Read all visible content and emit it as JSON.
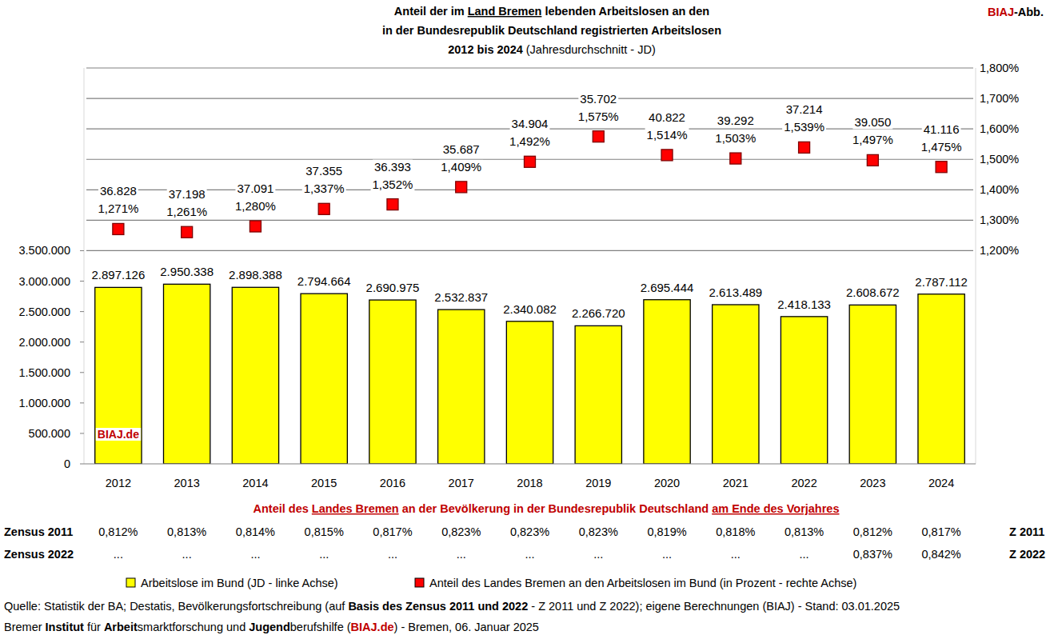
{
  "chart_data": {
    "type": "bar",
    "title": [
      [
        {
          "text": "Anteil der im "
        },
        {
          "text": "Land Bremen",
          "underline": true
        },
        {
          "text": " lebenden Arbeitslosen an den"
        }
      ],
      [
        {
          "text": "in der Bundesrepublik Deutschland registrierten Arbeitslosen"
        }
      ],
      [
        {
          "text": "2012 bis 2024"
        },
        {
          "text": "  (Jahresdurchschnitt - JD)",
          "bold": false
        }
      ]
    ],
    "badge": [
      {
        "text": "BIAJ",
        "color": "#c00000"
      },
      {
        "text": "-Abb."
      }
    ],
    "watermark": "BIAJ.de",
    "categories": [
      "2012",
      "2013",
      "2014",
      "2015",
      "2016",
      "2017",
      "2018",
      "2019",
      "2020",
      "2021",
      "2022",
      "2023",
      "2024"
    ],
    "series": [
      {
        "name": "Arbeitslose im Bund (JD - linke Achse)",
        "type": "bar",
        "color": "#ffff00",
        "values": [
          2897126,
          2950338,
          2898388,
          2794664,
          2690975,
          2532837,
          2340082,
          2266720,
          2695444,
          2613489,
          2418133,
          2608672,
          2787112
        ],
        "value_labels": [
          "2.897.126",
          "2.950.338",
          "2.898.388",
          "2.794.664",
          "2.690.975",
          "2.532.837",
          "2.340.082",
          "2.266.720",
          "2.695.444",
          "2.613.489",
          "2.418.133",
          "2.608.672",
          "2.787.112"
        ]
      },
      {
        "name": "Anteil des Landes Bremen an den Arbeitslosen im Bund (in Prozent - rechte Achse)",
        "type": "scatter",
        "marker": "square",
        "color": "#ff0000",
        "axis": "y2",
        "values": [
          1.271,
          1.261,
          1.28,
          1.337,
          1.352,
          1.409,
          1.492,
          1.575,
          1.514,
          1.503,
          1.539,
          1.497,
          1.475
        ],
        "value_labels": [
          "1,271%",
          "1,261%",
          "1,280%",
          "1,337%",
          "1,352%",
          "1,409%",
          "1,492%",
          "1,575%",
          "1,514%",
          "1,503%",
          "1,539%",
          "1,497%",
          "1,475%"
        ],
        "annotations": [
          "36.828",
          "37.198",
          "37.091",
          "37.355",
          "36.393",
          "35.687",
          "34.904",
          "35.702",
          "40.822",
          "39.292",
          "37.214",
          "39.050",
          "41.116"
        ]
      }
    ],
    "data_labels": true,
    "grid": true,
    "ylim": [
      0,
      6500000
    ],
    "yticks": [
      0,
      {
        "value": 500000,
        "label": "500.000"
      },
      {
        "value": 1000000,
        "label": "1.000.000"
      },
      {
        "value": 1500000,
        "label": "1.500.000"
      },
      {
        "value": 2000000,
        "label": "2.000.000"
      },
      {
        "value": 2500000,
        "label": "2.500.000"
      },
      {
        "value": 3000000,
        "label": "3.000.000"
      },
      {
        "value": 3500000,
        "label": "3.500.000"
      }
    ],
    "y2lim": [
      0.5,
      1.8
    ],
    "y2ticks": [
      {
        "value": 1.2,
        "label": "1,200%"
      },
      {
        "value": 1.3,
        "label": "1,300%"
      },
      {
        "value": 1.4,
        "label": "1,400%"
      },
      {
        "value": 1.5,
        "label": "1,500%"
      },
      {
        "value": 1.6,
        "label": "1,600%"
      },
      {
        "value": 1.7,
        "label": "1,700%"
      },
      {
        "value": 1.8,
        "label": "1,800%"
      }
    ],
    "table": {
      "title": [
        {
          "text": "Anteil des "
        },
        {
          "text": "Landes Bremen",
          "underline": true
        },
        {
          "text": " an der Bevölkerung in der Bundesrepublik Deutschland "
        },
        {
          "text": "am Ende des Vorjahres",
          "underline": true
        }
      ],
      "rows": [
        {
          "label": "Zensus 2011",
          "tag": "Z 2011",
          "cells": [
            "0,812%",
            "0,813%",
            "0,814%",
            "0,815%",
            "0,817%",
            "0,823%",
            "0,823%",
            "0,823%",
            "0,819%",
            "0,818%",
            "0,813%",
            "0,812%",
            "0,817%"
          ]
        },
        {
          "label": "Zensus 2022",
          "tag": "Z 2022",
          "cells": [
            "...",
            "...",
            "...",
            "...",
            "...",
            "...",
            "...",
            "...",
            "...",
            "...",
            "...",
            "0,837%",
            "0,842%"
          ]
        }
      ]
    },
    "source": [
      [
        {
          "text": "Quelle: Statistik der BA; Destatis, Bevölkerungsfortschreibung (auf "
        },
        {
          "text": "Basis des Zensus 2011 und 2022",
          "bold": true
        },
        {
          "text": " - Z 2011 und Z 2022); eigene Berechnungen (BIAJ) - Stand: 03.01.2025"
        }
      ],
      [
        {
          "text": "Bremer "
        },
        {
          "text": "Institut",
          "bold": true
        },
        {
          "text": " für "
        },
        {
          "text": "Arbeit",
          "bold": true
        },
        {
          "text": "smarktforschung und "
        },
        {
          "text": "Jugend",
          "bold": true
        },
        {
          "text": "berufshilfe ("
        },
        {
          "text": "BIAJ.de",
          "bold": true,
          "color": "#c00000"
        },
        {
          "text": ") - Bremen, 06. Januar 2025"
        }
      ]
    ]
  }
}
